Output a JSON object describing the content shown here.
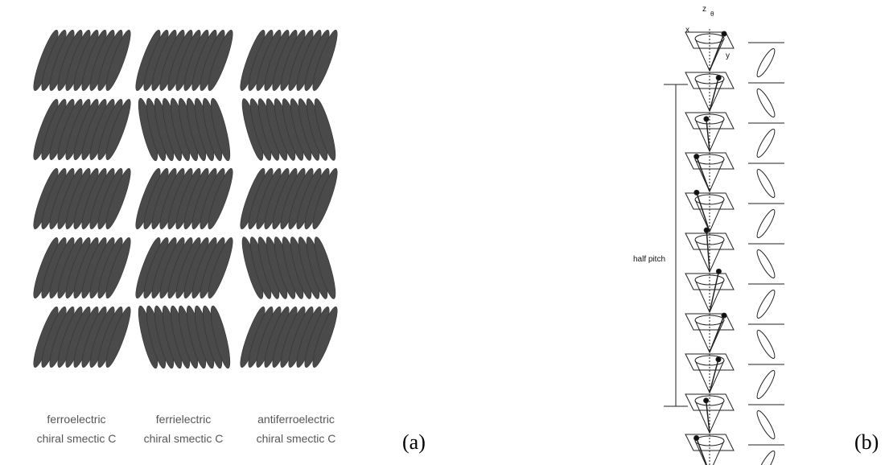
{
  "panel_a": {
    "columns": [
      {
        "line1": "ferroelectric",
        "line2": "chiral smectic C"
      },
      {
        "line1": "ferrielectric",
        "line2": "chiral smectic C"
      },
      {
        "line1": "antiferroelectric",
        "line2": "chiral smectic C"
      }
    ],
    "label": "(a)"
  },
  "panel_b": {
    "axis_z": "z",
    "axis_theta": "θ",
    "axis_x": "x",
    "axis_y": "y",
    "half_pitch": "half pitch",
    "label": "(b)"
  }
}
